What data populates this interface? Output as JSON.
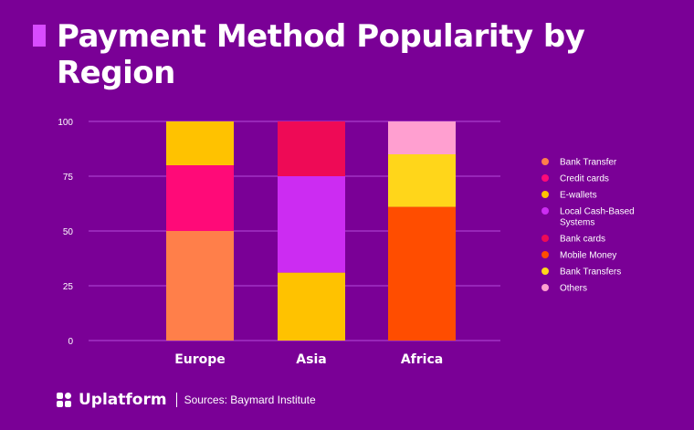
{
  "header": {
    "title": "Payment Method Popularity by Region"
  },
  "footer": {
    "brand": "Uplatform",
    "source": "Sources: Baymard Institute"
  },
  "colors": {
    "background": "#7a0096",
    "accent": "#d84cff",
    "gridline": "#b44ddb"
  },
  "chart_data": {
    "type": "bar",
    "stacked": true,
    "title": "",
    "xlabel": "",
    "ylabel": "",
    "ylim": [
      0,
      100
    ],
    "yticks": [
      0,
      25,
      50,
      75,
      100
    ],
    "categories": [
      "Europe",
      "Asia",
      "Africa"
    ],
    "series": [
      {
        "name": "Bank Transfer",
        "color": "#ff7f4a",
        "values": [
          50,
          0,
          0
        ]
      },
      {
        "name": "Credit cards",
        "color": "#ff0a78",
        "values": [
          30,
          0,
          0
        ]
      },
      {
        "name": "E-wallets",
        "color": "#ffc200",
        "values": [
          20,
          31,
          0
        ]
      },
      {
        "name": "Local Cash-Based Systems",
        "color": "#cc2cf2",
        "values": [
          0,
          44,
          0
        ]
      },
      {
        "name": "Bank cards",
        "color": "#ee0a56",
        "values": [
          0,
          25,
          0
        ]
      },
      {
        "name": "Mobile Money",
        "color": "#ff4d00",
        "values": [
          0,
          0,
          61
        ]
      },
      {
        "name": "Bank Transfers",
        "color": "#ffd61a",
        "values": [
          0,
          0,
          24
        ]
      },
      {
        "name": "Others",
        "color": "#ff9fd0",
        "values": [
          0,
          0,
          15
        ]
      }
    ],
    "legend": "right",
    "grid": true
  }
}
